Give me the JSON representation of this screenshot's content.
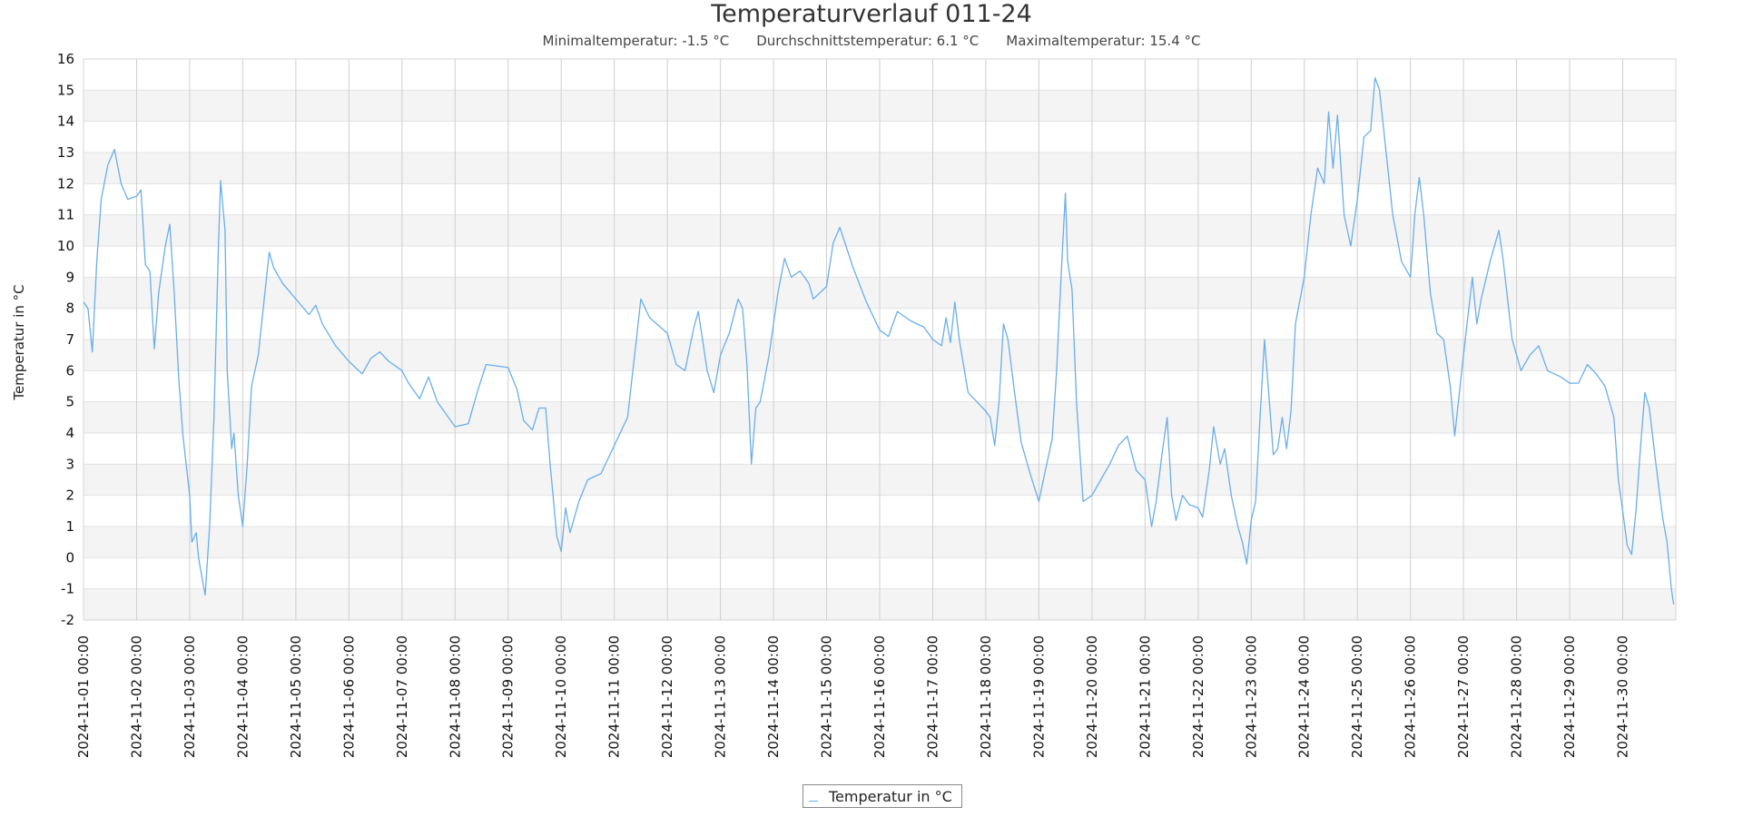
{
  "chart_data": {
    "type": "line",
    "title": "Temperaturverlauf 011-24",
    "stats": {
      "min": "Minimaltemperatur: -1.5 °C",
      "avg": "Durchschnittstemperatur: 6.1 °C",
      "max": "Maximaltemperatur: 15.4 °C"
    },
    "ylabel": "Temperatur in °C",
    "xlabel": "",
    "ylim": [
      -2,
      16
    ],
    "yticks": [
      "16",
      "15",
      "14",
      "13",
      "12",
      "11",
      "10",
      "9",
      "8",
      "7",
      "6",
      "5",
      "4",
      "3",
      "2",
      "1",
      "0",
      "-1",
      "-2"
    ],
    "xlim": [
      "2024-11-01 00:00",
      "2024-12-01 00:00"
    ],
    "xticks": [
      "2024-11-01 00:00",
      "2024-11-02 00:00",
      "2024-11-03 00:00",
      "2024-11-04 00:00",
      "2024-11-05 00:00",
      "2024-11-06 00:00",
      "2024-11-07 00:00",
      "2024-11-08 00:00",
      "2024-11-09 00:00",
      "2024-11-10 00:00",
      "2024-11-11 00:00",
      "2024-11-12 00:00",
      "2024-11-13 00:00",
      "2024-11-14 00:00",
      "2024-11-15 00:00",
      "2024-11-16 00:00",
      "2024-11-17 00:00",
      "2024-11-18 00:00",
      "2024-11-19 00:00",
      "2024-11-20 00:00",
      "2024-11-21 00:00",
      "2024-11-22 00:00",
      "2024-11-23 00:00",
      "2024-11-24 00:00",
      "2024-11-25 00:00",
      "2024-11-26 00:00",
      "2024-11-27 00:00",
      "2024-11-28 00:00",
      "2024-11-29 00:00",
      "2024-11-30 00:00"
    ],
    "grid": "vertical lines and alternating horizontal bands",
    "legend": "bottom-center",
    "series": [
      {
        "name": "Temperatur in °C",
        "color": "#6aaee8",
        "points": [
          [
            "2024-11-01 00:00",
            8.2
          ],
          [
            "2024-11-01 02:00",
            8.0
          ],
          [
            "2024-11-01 04:00",
            6.6
          ],
          [
            "2024-11-01 06:00",
            9.5
          ],
          [
            "2024-11-01 08:00",
            11.5
          ],
          [
            "2024-11-01 11:00",
            12.6
          ],
          [
            "2024-11-01 14:00",
            13.1
          ],
          [
            "2024-11-01 17:00",
            12.0
          ],
          [
            "2024-11-01 20:00",
            11.5
          ],
          [
            "2024-11-02 00:00",
            11.6
          ],
          [
            "2024-11-02 02:00",
            11.8
          ],
          [
            "2024-11-02 04:00",
            9.4
          ],
          [
            "2024-11-02 06:00",
            9.2
          ],
          [
            "2024-11-02 08:00",
            6.7
          ],
          [
            "2024-11-02 10:00",
            8.5
          ],
          [
            "2024-11-02 13:00",
            10.0
          ],
          [
            "2024-11-02 15:00",
            10.7
          ],
          [
            "2024-11-02 17:00",
            8.5
          ],
          [
            "2024-11-02 19:00",
            5.8
          ],
          [
            "2024-11-02 21:00",
            3.9
          ],
          [
            "2024-11-03 00:00",
            2.0
          ],
          [
            "2024-11-03 01:00",
            0.5
          ],
          [
            "2024-11-03 03:00",
            0.8
          ],
          [
            "2024-11-03 04:00",
            0.0
          ],
          [
            "2024-11-03 06:00",
            -0.8
          ],
          [
            "2024-11-03 07:00",
            -1.2
          ],
          [
            "2024-11-03 09:00",
            1.0
          ],
          [
            "2024-11-03 11:00",
            4.5
          ],
          [
            "2024-11-03 13:00",
            10.0
          ],
          [
            "2024-11-03 14:00",
            12.1
          ],
          [
            "2024-11-03 16:00",
            10.5
          ],
          [
            "2024-11-03 17:00",
            6.0
          ],
          [
            "2024-11-03 19:00",
            3.5
          ],
          [
            "2024-11-03 20:00",
            4.0
          ],
          [
            "2024-11-03 22:00",
            2.0
          ],
          [
            "2024-11-04 00:00",
            1.0
          ],
          [
            "2024-11-04 02:00",
            3.0
          ],
          [
            "2024-11-04 04:00",
            5.5
          ],
          [
            "2024-11-04 07:00",
            6.5
          ],
          [
            "2024-11-04 10:00",
            8.5
          ],
          [
            "2024-11-04 12:00",
            9.8
          ],
          [
            "2024-11-04 14:00",
            9.3
          ],
          [
            "2024-11-04 18:00",
            8.8
          ],
          [
            "2024-11-05 00:00",
            8.3
          ],
          [
            "2024-11-05 06:00",
            7.8
          ],
          [
            "2024-11-05 09:00",
            8.1
          ],
          [
            "2024-11-05 12:00",
            7.5
          ],
          [
            "2024-11-05 18:00",
            6.8
          ],
          [
            "2024-11-06 00:00",
            6.3
          ],
          [
            "2024-11-06 06:00",
            5.9
          ],
          [
            "2024-11-06 10:00",
            6.4
          ],
          [
            "2024-11-06 14:00",
            6.6
          ],
          [
            "2024-11-06 18:00",
            6.3
          ],
          [
            "2024-11-07 00:00",
            6.0
          ],
          [
            "2024-11-07 03:00",
            5.6
          ],
          [
            "2024-11-07 08:00",
            5.1
          ],
          [
            "2024-11-07 12:00",
            5.8
          ],
          [
            "2024-11-07 16:00",
            5.0
          ],
          [
            "2024-11-07 19:00",
            4.7
          ],
          [
            "2024-11-08 00:00",
            4.2
          ],
          [
            "2024-11-08 06:00",
            4.3
          ],
          [
            "2024-11-08 10:00",
            5.3
          ],
          [
            "2024-11-08 14:00",
            6.2
          ],
          [
            "2024-11-09 00:00",
            6.1
          ],
          [
            "2024-11-09 04:00",
            5.4
          ],
          [
            "2024-11-09 07:00",
            4.4
          ],
          [
            "2024-11-09 11:00",
            4.1
          ],
          [
            "2024-11-09 14:00",
            4.8
          ],
          [
            "2024-11-09 17:00",
            4.8
          ],
          [
            "2024-11-09 19:00",
            3.0
          ],
          [
            "2024-11-09 22:00",
            0.7
          ],
          [
            "2024-11-10 00:00",
            0.2
          ],
          [
            "2024-11-10 02:00",
            1.6
          ],
          [
            "2024-11-10 04:00",
            0.8
          ],
          [
            "2024-11-10 08:00",
            1.8
          ],
          [
            "2024-11-10 12:00",
            2.5
          ],
          [
            "2024-11-10 18:00",
            2.7
          ],
          [
            "2024-11-11 00:00",
            3.6
          ],
          [
            "2024-11-11 06:00",
            4.5
          ],
          [
            "2024-11-11 10:00",
            7.0
          ],
          [
            "2024-11-11 12:00",
            8.3
          ],
          [
            "2024-11-11 16:00",
            7.7
          ],
          [
            "2024-11-12 00:00",
            7.2
          ],
          [
            "2024-11-12 04:00",
            6.2
          ],
          [
            "2024-11-12 08:00",
            6.0
          ],
          [
            "2024-11-12 12:00",
            7.4
          ],
          [
            "2024-11-12 14:00",
            7.9
          ],
          [
            "2024-11-12 18:00",
            6.0
          ],
          [
            "2024-11-12 21:00",
            5.3
          ],
          [
            "2024-11-13 00:00",
            6.5
          ],
          [
            "2024-11-13 04:00",
            7.2
          ],
          [
            "2024-11-13 08:00",
            8.3
          ],
          [
            "2024-11-13 10:00",
            8.0
          ],
          [
            "2024-11-13 12:00",
            6.2
          ],
          [
            "2024-11-13 14:00",
            3.0
          ],
          [
            "2024-11-13 16:00",
            4.8
          ],
          [
            "2024-11-13 18:00",
            5.0
          ],
          [
            "2024-11-13 22:00",
            6.5
          ],
          [
            "2024-11-14 02:00",
            8.5
          ],
          [
            "2024-11-14 05:00",
            9.6
          ],
          [
            "2024-11-14 08:00",
            9.0
          ],
          [
            "2024-11-14 12:00",
            9.2
          ],
          [
            "2024-11-14 16:00",
            8.8
          ],
          [
            "2024-11-14 18:00",
            8.3
          ],
          [
            "2024-11-15 00:00",
            8.7
          ],
          [
            "2024-11-15 03:00",
            10.1
          ],
          [
            "2024-11-15 06:00",
            10.6
          ],
          [
            "2024-11-15 12:00",
            9.3
          ],
          [
            "2024-11-15 18:00",
            8.2
          ],
          [
            "2024-11-16 00:00",
            7.3
          ],
          [
            "2024-11-16 04:00",
            7.1
          ],
          [
            "2024-11-16 08:00",
            7.9
          ],
          [
            "2024-11-16 14:00",
            7.6
          ],
          [
            "2024-11-16 20:00",
            7.4
          ],
          [
            "2024-11-17 00:00",
            7.0
          ],
          [
            "2024-11-17 04:00",
            6.8
          ],
          [
            "2024-11-17 06:00",
            7.7
          ],
          [
            "2024-11-17 08:00",
            6.9
          ],
          [
            "2024-11-17 10:00",
            8.2
          ],
          [
            "2024-11-17 12:00",
            7.0
          ],
          [
            "2024-11-17 16:00",
            5.3
          ],
          [
            "2024-11-17 20:00",
            5.0
          ],
          [
            "2024-11-18 00:00",
            4.7
          ],
          [
            "2024-11-18 02:00",
            4.5
          ],
          [
            "2024-11-18 04:00",
            3.6
          ],
          [
            "2024-11-18 06:00",
            5.0
          ],
          [
            "2024-11-18 08:00",
            7.5
          ],
          [
            "2024-11-18 10:00",
            7.0
          ],
          [
            "2024-11-18 13:00",
            5.3
          ],
          [
            "2024-11-18 16:00",
            3.7
          ],
          [
            "2024-11-18 20:00",
            2.7
          ],
          [
            "2024-11-19 00:00",
            1.8
          ],
          [
            "2024-11-19 02:00",
            2.5
          ],
          [
            "2024-11-19 06:00",
            3.8
          ],
          [
            "2024-11-19 08:00",
            6.0
          ],
          [
            "2024-11-19 10:00",
            9.0
          ],
          [
            "2024-11-19 12:00",
            11.7
          ],
          [
            "2024-11-19 13:00",
            9.5
          ],
          [
            "2024-11-19 15:00",
            8.6
          ],
          [
            "2024-11-19 17:00",
            5.0
          ],
          [
            "2024-11-19 20:00",
            1.8
          ],
          [
            "2024-11-20 00:00",
            2.0
          ],
          [
            "2024-11-20 04:00",
            2.5
          ],
          [
            "2024-11-20 08:00",
            3.0
          ],
          [
            "2024-11-20 12:00",
            3.6
          ],
          [
            "2024-11-20 16:00",
            3.9
          ],
          [
            "2024-11-20 20:00",
            2.8
          ],
          [
            "2024-11-21 00:00",
            2.5
          ],
          [
            "2024-11-21 03:00",
            1.0
          ],
          [
            "2024-11-21 05:00",
            1.8
          ],
          [
            "2024-11-21 08:00",
            3.5
          ],
          [
            "2024-11-21 10:00",
            4.5
          ],
          [
            "2024-11-21 12:00",
            2.0
          ],
          [
            "2024-11-21 14:00",
            1.2
          ],
          [
            "2024-11-21 17:00",
            2.0
          ],
          [
            "2024-11-21 20:00",
            1.7
          ],
          [
            "2024-11-22 00:00",
            1.6
          ],
          [
            "2024-11-22 02:00",
            1.3
          ],
          [
            "2024-11-22 05:00",
            2.8
          ],
          [
            "2024-11-22 07:00",
            4.2
          ],
          [
            "2024-11-22 10:00",
            3.0
          ],
          [
            "2024-11-22 12:00",
            3.5
          ],
          [
            "2024-11-22 15:00",
            2.0
          ],
          [
            "2024-11-22 18:00",
            1.0
          ],
          [
            "2024-11-22 20:00",
            0.5
          ],
          [
            "2024-11-22 22:00",
            -0.2
          ],
          [
            "2024-11-23 00:00",
            1.2
          ],
          [
            "2024-11-23 02:00",
            1.8
          ],
          [
            "2024-11-23 04:00",
            4.5
          ],
          [
            "2024-11-23 06:00",
            7.0
          ],
          [
            "2024-11-23 08:00",
            5.2
          ],
          [
            "2024-11-23 10:00",
            3.3
          ],
          [
            "2024-11-23 12:00",
            3.5
          ],
          [
            "2024-11-23 14:00",
            4.5
          ],
          [
            "2024-11-23 16:00",
            3.5
          ],
          [
            "2024-11-23 18:00",
            4.7
          ],
          [
            "2024-11-23 20:00",
            7.5
          ],
          [
            "2024-11-24 00:00",
            9.0
          ],
          [
            "2024-11-24 03:00",
            11.0
          ],
          [
            "2024-11-24 06:00",
            12.5
          ],
          [
            "2024-11-24 09:00",
            12.0
          ],
          [
            "2024-11-24 11:00",
            14.3
          ],
          [
            "2024-11-24 13:00",
            12.5
          ],
          [
            "2024-11-24 15:00",
            14.2
          ],
          [
            "2024-11-24 18:00",
            11.0
          ],
          [
            "2024-11-24 21:00",
            10.0
          ],
          [
            "2024-11-25 00:00",
            11.5
          ],
          [
            "2024-11-25 03:00",
            13.5
          ],
          [
            "2024-11-25 06:00",
            13.7
          ],
          [
            "2024-11-25 08:00",
            15.4
          ],
          [
            "2024-11-25 10:00",
            15.0
          ],
          [
            "2024-11-25 13:00",
            13.0
          ],
          [
            "2024-11-25 16:00",
            11.0
          ],
          [
            "2024-11-25 20:00",
            9.5
          ],
          [
            "2024-11-26 00:00",
            9.0
          ],
          [
            "2024-11-26 02:00",
            11.0
          ],
          [
            "2024-11-26 04:00",
            12.2
          ],
          [
            "2024-11-26 06:00",
            11.0
          ],
          [
            "2024-11-26 09:00",
            8.5
          ],
          [
            "2024-11-26 12:00",
            7.2
          ],
          [
            "2024-11-26 15:00",
            7.0
          ],
          [
            "2024-11-26 18:00",
            5.5
          ],
          [
            "2024-11-26 20:00",
            3.9
          ],
          [
            "2024-11-27 00:00",
            6.5
          ],
          [
            "2024-11-27 04:00",
            9.0
          ],
          [
            "2024-11-27 06:00",
            7.5
          ],
          [
            "2024-11-27 08:00",
            8.3
          ],
          [
            "2024-11-27 12:00",
            9.5
          ],
          [
            "2024-11-27 16:00",
            10.5
          ],
          [
            "2024-11-27 18:00",
            9.5
          ],
          [
            "2024-11-27 22:00",
            7.0
          ],
          [
            "2024-11-28 02:00",
            6.0
          ],
          [
            "2024-11-28 06:00",
            6.5
          ],
          [
            "2024-11-28 10:00",
            6.8
          ],
          [
            "2024-11-28 14:00",
            6.0
          ],
          [
            "2024-11-28 20:00",
            5.8
          ],
          [
            "2024-11-29 00:00",
            5.6
          ],
          [
            "2024-11-29 04:00",
            5.6
          ],
          [
            "2024-11-29 08:00",
            6.2
          ],
          [
            "2024-11-29 12:00",
            5.9
          ],
          [
            "2024-11-29 16:00",
            5.5
          ],
          [
            "2024-11-29 20:00",
            4.5
          ],
          [
            "2024-11-29 22:00",
            2.5
          ],
          [
            "2024-11-30 00:00",
            1.5
          ],
          [
            "2024-11-30 02:00",
            0.4
          ],
          [
            "2024-11-30 04:00",
            0.1
          ],
          [
            "2024-11-30 06:00",
            1.5
          ],
          [
            "2024-11-30 08:00",
            3.5
          ],
          [
            "2024-11-30 10:00",
            5.3
          ],
          [
            "2024-11-30 12:00",
            4.8
          ],
          [
            "2024-11-30 15:00",
            3.0
          ],
          [
            "2024-11-30 18:00",
            1.3
          ],
          [
            "2024-11-30 20:00",
            0.5
          ],
          [
            "2024-11-30 22:00",
            -1.0
          ],
          [
            "2024-11-30 23:00",
            -1.5
          ]
        ]
      }
    ]
  }
}
